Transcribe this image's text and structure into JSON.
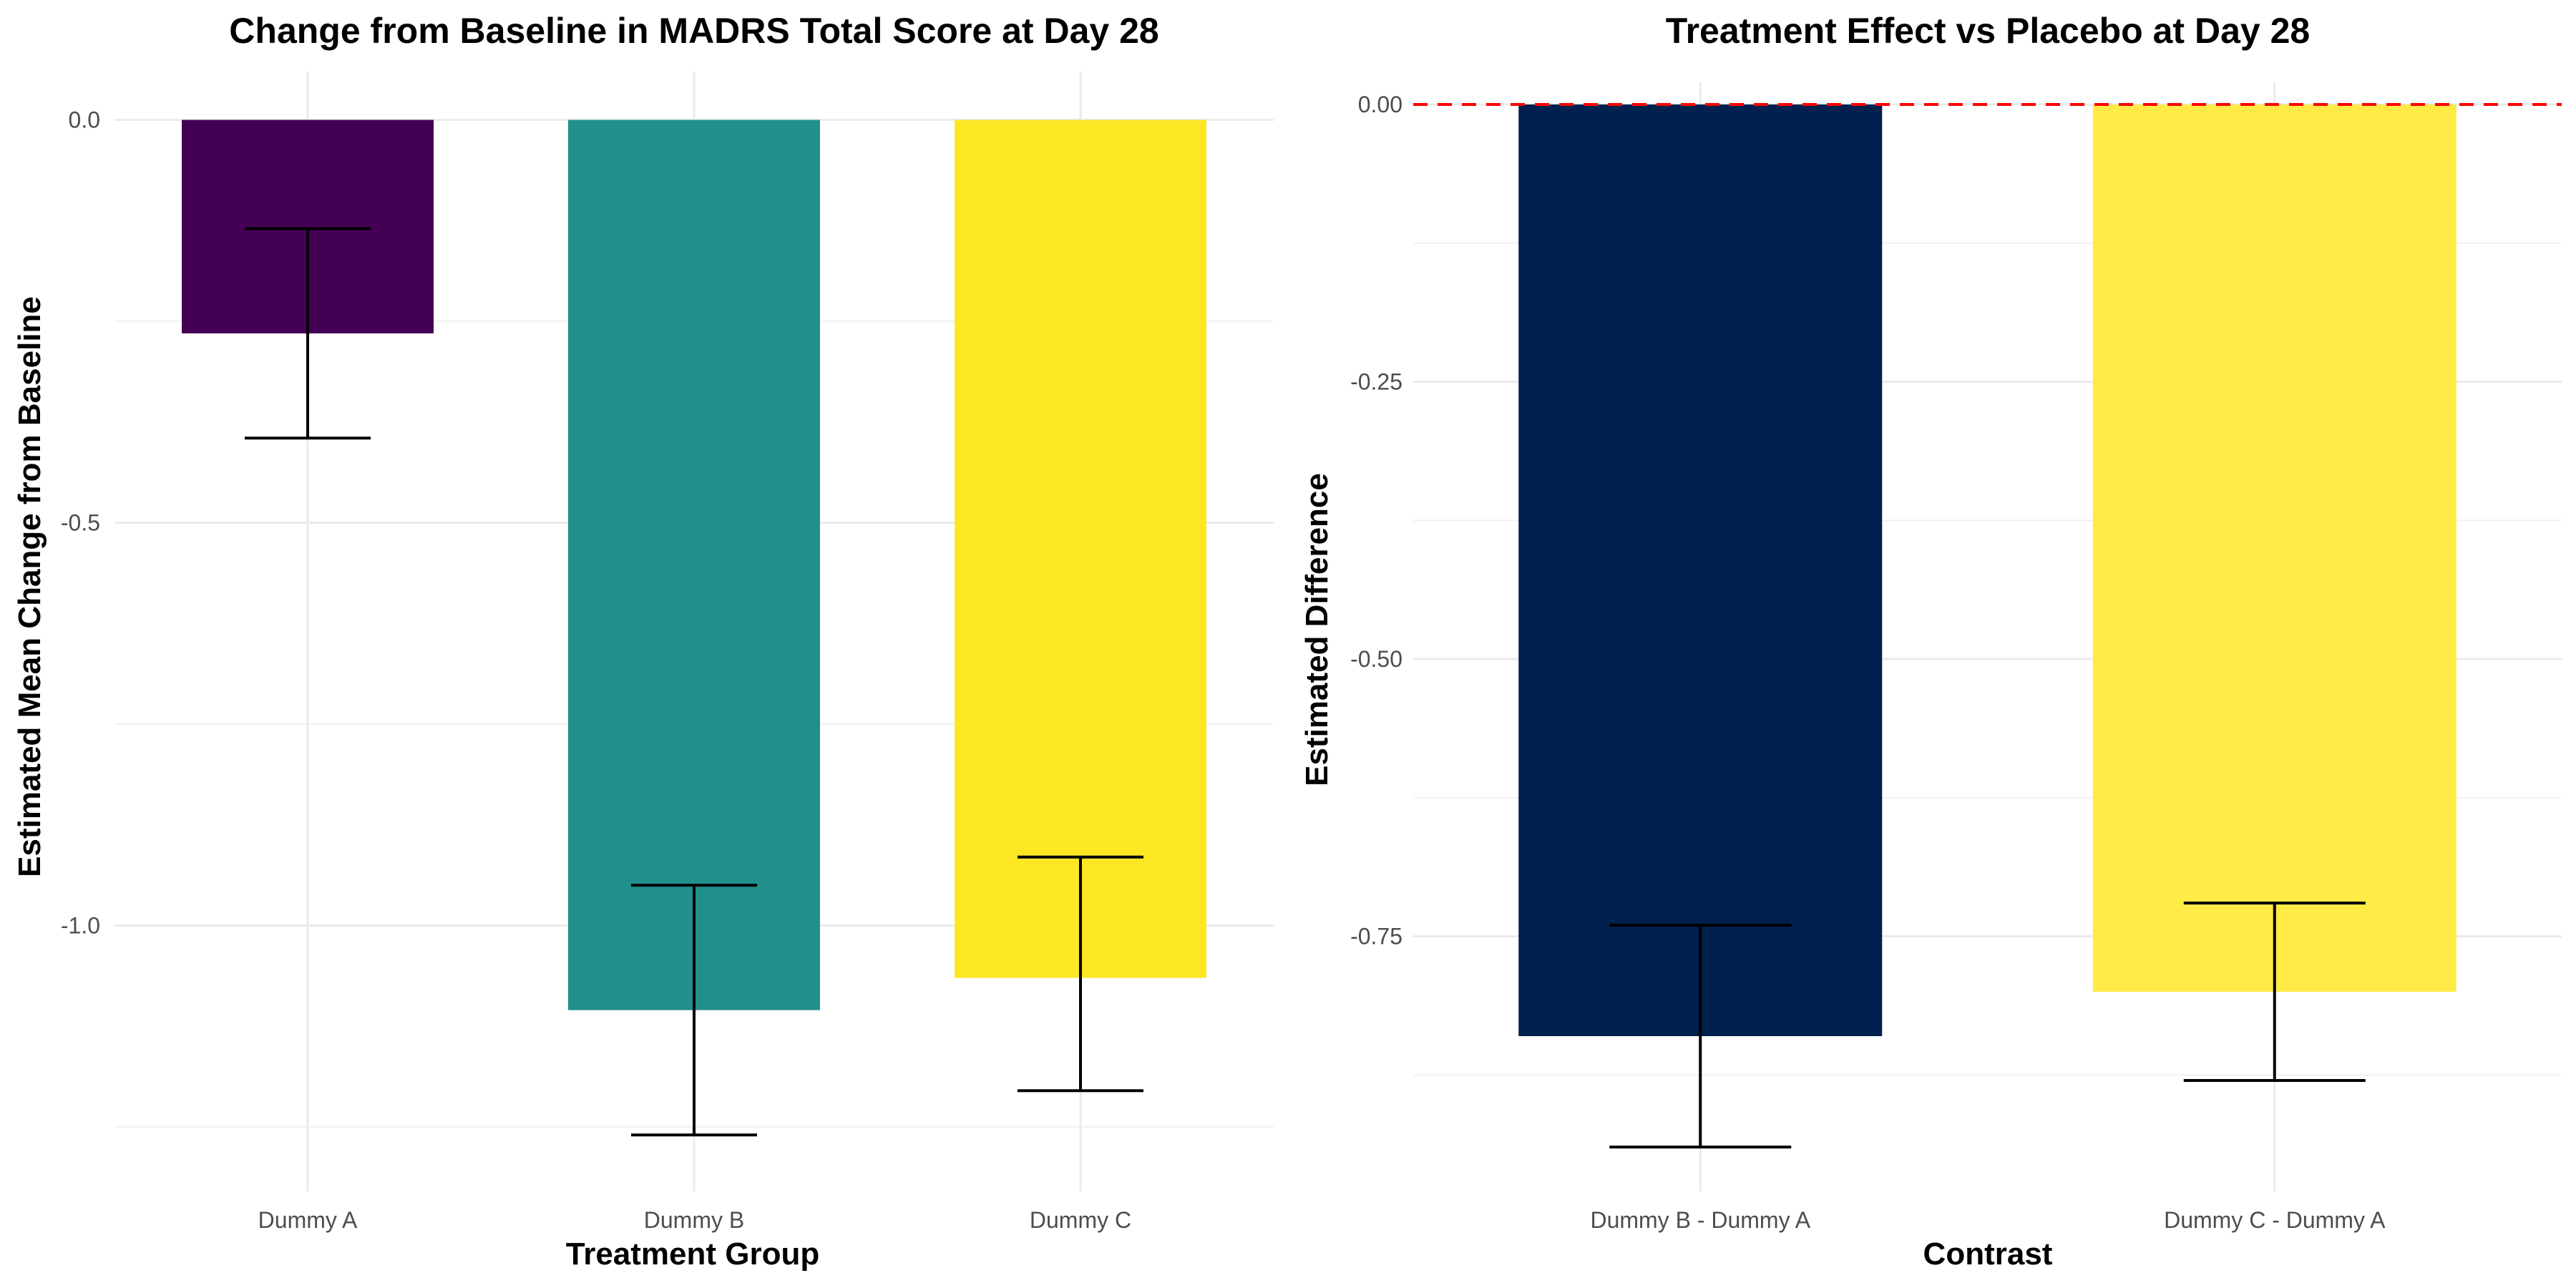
{
  "chart_data": [
    {
      "type": "bar",
      "title": "Change from Baseline in MADRS Total Score at Day 28",
      "xlabel": "Treatment Group",
      "ylabel": "Estimated Mean Change from Baseline",
      "categories": [
        "Dummy A",
        "Dummy B",
        "Dummy C"
      ],
      "values": [
        -0.265,
        -1.105,
        -1.065
      ],
      "error_lower": [
        -0.395,
        -1.26,
        -1.205
      ],
      "error_upper": [
        -0.135,
        -0.95,
        -0.915
      ],
      "colors": [
        "#440154",
        "#21908C",
        "#FDE725"
      ],
      "ylim": [
        -1.33,
        0.06
      ],
      "yticks": [
        0.0,
        -0.5,
        -1.0
      ],
      "ytick_labels": [
        "0.0",
        "-0.5",
        "-1.0"
      ],
      "grid": true
    },
    {
      "type": "bar",
      "title": "Treatment Effect vs Placebo at Day 28",
      "xlabel": "Contrast",
      "ylabel": "Estimated Difference",
      "categories": [
        "Dummy B - Dummy A",
        "Dummy C - Dummy A"
      ],
      "values": [
        -0.84,
        -0.8
      ],
      "error_lower": [
        -0.94,
        -0.88
      ],
      "error_upper": [
        -0.74,
        -0.72
      ],
      "colors": [
        "#00204D",
        "#FFEA46"
      ],
      "reference_line": {
        "y": 0,
        "color": "#ff0000",
        "style": "dashed"
      },
      "ylim": [
        -0.98,
        0.02
      ],
      "yticks": [
        0.0,
        -0.25,
        -0.5,
        -0.75
      ],
      "ytick_labels": [
        "0.00",
        "-0.25",
        "-0.50",
        "-0.75"
      ],
      "grid": true
    }
  ]
}
